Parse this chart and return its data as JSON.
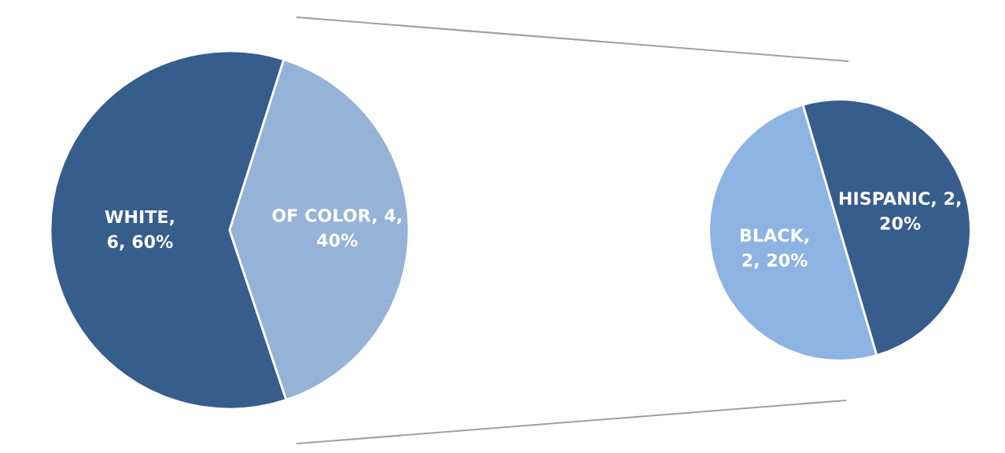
{
  "chart_data": [
    {
      "type": "pie",
      "values": [
        6,
        4
      ],
      "colors": [
        "#375d8c",
        "#95b3d7"
      ],
      "value_labels": [
        "WHITE,\n6, 60%",
        "OF COLOR, 4,\n40%"
      ]
    },
    {
      "type": "pie",
      "values": [
        2,
        2
      ],
      "colors": [
        "#8db3e2",
        "#375d8c"
      ],
      "value_labels": [
        "BLACK,\n2, 20%",
        "HISPANIC, 2,\n20%"
      ]
    }
  ]
}
